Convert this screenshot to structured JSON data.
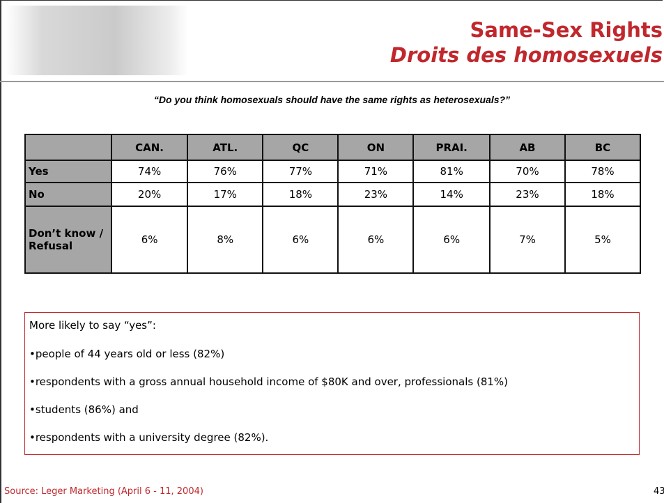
{
  "header": {
    "title": "Same-Sex Rights",
    "subtitle": "Droits des homosexuels"
  },
  "question": "“Do you think homosexuals should have the same rights as heterosexuals?”",
  "table": {
    "columns": [
      "CAN.",
      "ATL.",
      "QC",
      "ON",
      "PRAI.",
      "AB",
      "BC"
    ],
    "rows": [
      {
        "label": "Yes",
        "cells": [
          "74%",
          "76%",
          "77%",
          "71%",
          "81%",
          "70%",
          "78%"
        ]
      },
      {
        "label": "No",
        "cells": [
          "20%",
          "17%",
          "18%",
          "23%",
          "14%",
          "23%",
          "18%"
        ]
      },
      {
        "label": "Don’t know / Refusal",
        "cells": [
          "6%",
          "8%",
          "6%",
          "6%",
          "6%",
          "7%",
          "5%"
        ]
      }
    ]
  },
  "note": {
    "heading": "More likely to say “yes”:",
    "items": [
      "•people of 44 years old or less (82%)",
      "•respondents with a gross annual household income of $80K and over, professionals (81%)",
      "•students (86%) and",
      "•respondents with a university degree (82%)."
    ]
  },
  "footer": {
    "source": "Source: Leger Marketing (April 6 - 11, 2004)",
    "page": "43"
  }
}
